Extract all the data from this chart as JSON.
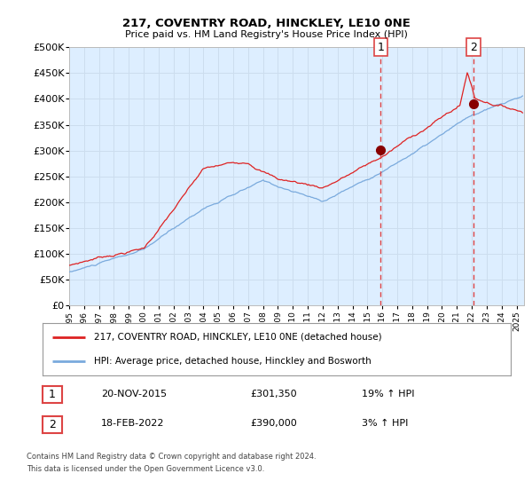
{
  "title1": "217, COVENTRY ROAD, HINCKLEY, LE10 0NE",
  "title2": "Price paid vs. HM Land Registry's House Price Index (HPI)",
  "ylim": [
    0,
    500000
  ],
  "yticks": [
    0,
    50000,
    100000,
    150000,
    200000,
    250000,
    300000,
    350000,
    400000,
    450000,
    500000
  ],
  "ytick_labels": [
    "£0",
    "£50K",
    "£100K",
    "£150K",
    "£200K",
    "£250K",
    "£300K",
    "£350K",
    "£400K",
    "£450K",
    "£500K"
  ],
  "hpi_color": "#7aaadd",
  "price_color": "#dd2222",
  "marker_color": "#880000",
  "dashed_color": "#dd4444",
  "bg_color": "#ddeeff",
  "grid_color": "#ccddee",
  "legend_label_red": "217, COVENTRY ROAD, HINCKLEY, LE10 0NE (detached house)",
  "legend_label_blue": "HPI: Average price, detached house, Hinckley and Bosworth",
  "sale1_date": "20-NOV-2015",
  "sale1_price": 301350,
  "sale1_label": "£301,350",
  "sale1_pct": "19% ↑ HPI",
  "sale1_year": 2015.89,
  "sale2_date": "18-FEB-2022",
  "sale2_price": 390000,
  "sale2_label": "£390,000",
  "sale2_pct": "3% ↑ HPI",
  "sale2_year": 2022.12,
  "footnote1": "Contains HM Land Registry data © Crown copyright and database right 2024.",
  "footnote2": "This data is licensed under the Open Government Licence v3.0.",
  "xlim_start": 1995.0,
  "xlim_end": 2025.5,
  "xticks": [
    1995,
    1996,
    1997,
    1998,
    1999,
    2000,
    2001,
    2002,
    2003,
    2004,
    2005,
    2006,
    2007,
    2008,
    2009,
    2010,
    2011,
    2012,
    2013,
    2014,
    2015,
    2016,
    2017,
    2018,
    2019,
    2020,
    2021,
    2022,
    2023,
    2024,
    2025
  ]
}
